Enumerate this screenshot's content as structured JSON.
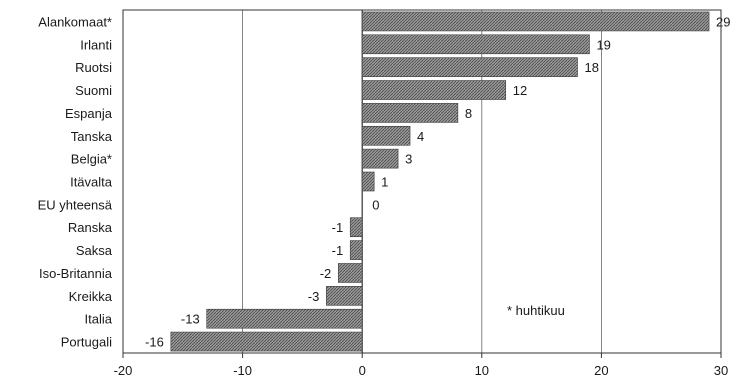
{
  "chart_data": {
    "type": "bar",
    "orientation": "horizontal",
    "categories": [
      "Alankomaat*",
      "Irlanti",
      "Ruotsi",
      "Suomi",
      "Espanja",
      "Tanska",
      "Belgia*",
      "Itävalta",
      "EU yhteensä",
      "Ranska",
      "Saksa",
      "Iso-Britannia",
      "Kreikka",
      "Italia",
      "Portugali"
    ],
    "values": [
      29,
      19,
      18,
      12,
      8,
      4,
      3,
      1,
      0,
      -1,
      -1,
      -2,
      -3,
      -13,
      -16
    ],
    "value_labels": [
      "29",
      "19",
      "18",
      "12",
      "8",
      "4",
      "3",
      "1",
      "0",
      "-1",
      "-1",
      "-2",
      "-3",
      "-13",
      "-16"
    ],
    "xlim": [
      -20,
      30
    ],
    "xticks": [
      -20,
      -10,
      0,
      10,
      20,
      30
    ],
    "xtick_labels": [
      "-20",
      "-10",
      "0",
      "10",
      "20",
      "30"
    ],
    "grid": "vertical",
    "annotation": "* huhtikuu",
    "bar_fill": "hatched-gray",
    "colors": {
      "bar": "#7a7a7a",
      "grid": "#666666",
      "text": "#1a1a1a"
    }
  }
}
